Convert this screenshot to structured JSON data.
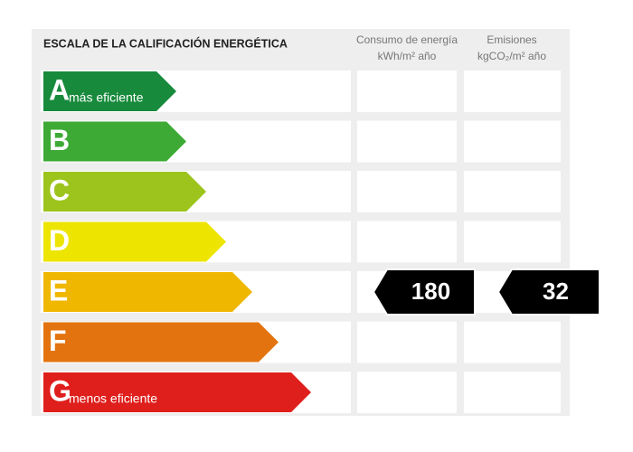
{
  "header": {
    "title": "ESCALA DE LA CALIFICACIÓN ENERGÉTICA",
    "consumption": [
      "Consumo de energía",
      "kWh/m² año"
    ],
    "emissions": [
      "Emisiones",
      "kgCO₂/m² año"
    ]
  },
  "rows": [
    {
      "letter": "A",
      "note": "más eficiente",
      "color": "#178a3c"
    },
    {
      "letter": "B",
      "color": "#3daa35"
    },
    {
      "letter": "C",
      "color": "#9dc41c"
    },
    {
      "letter": "D",
      "color": "#ede500"
    },
    {
      "letter": "E",
      "color": "#efb700",
      "consumption": 180,
      "emissions": 32
    },
    {
      "letter": "F",
      "color": "#e3730f"
    },
    {
      "letter": "G",
      "note": "menos eficiente",
      "color": "#df1f1c"
    }
  ]
}
